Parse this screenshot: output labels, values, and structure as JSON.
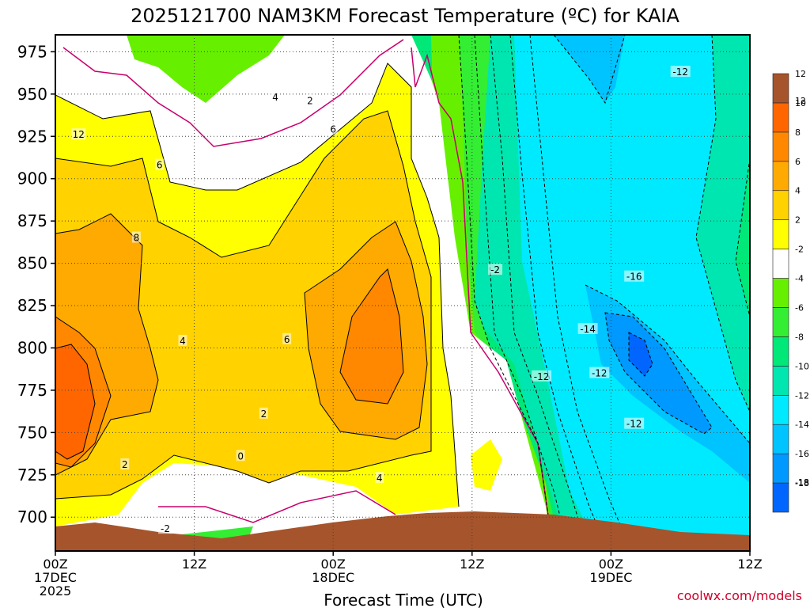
{
  "chart_data": {
    "type": "heatmap",
    "title": "2025121700 NAM3KM Forecast Temperature (ºC) for KAIA",
    "xlabel": "Forecast Time (UTC)",
    "credit": "coolwx.com/models",
    "x_range_hours": [
      0,
      60
    ],
    "y_range_hpa": [
      985,
      680
    ],
    "y_ticks": [
      {
        "value": 700,
        "label": "700"
      },
      {
        "value": 725,
        "label": "725"
      },
      {
        "value": 750,
        "label": "750"
      },
      {
        "value": 775,
        "label": "775"
      },
      {
        "value": 800,
        "label": "800"
      },
      {
        "value": 825,
        "label": "825"
      },
      {
        "value": 850,
        "label": "850"
      },
      {
        "value": 875,
        "label": "875"
      },
      {
        "value": 900,
        "label": "900"
      },
      {
        "value": 925,
        "label": "925"
      },
      {
        "value": 950,
        "label": "950"
      },
      {
        "value": 975,
        "label": "975"
      }
    ],
    "x_ticks": [
      {
        "hour": 0,
        "lines": [
          "00Z",
          "17DEC",
          "2025"
        ]
      },
      {
        "hour": 12,
        "lines": [
          "12Z"
        ]
      },
      {
        "hour": 24,
        "lines": [
          "00Z",
          "18DEC"
        ]
      },
      {
        "hour": 36,
        "lines": [
          "12Z"
        ]
      },
      {
        "hour": 48,
        "lines": [
          "00Z",
          "19DEC"
        ]
      },
      {
        "hour": 60,
        "lines": [
          "12Z"
        ]
      }
    ],
    "grid": true,
    "legend_position": "right",
    "colorbar": [
      {
        "color": "#0066ff",
        "label": "-18"
      },
      {
        "color": "#0099ff",
        "label": "-16"
      },
      {
        "color": "#00c4ff",
        "label": "-14"
      },
      {
        "color": "#00eaff",
        "label": "-12"
      },
      {
        "color": "#00e6b0",
        "label": "-10"
      },
      {
        "color": "#00e878",
        "label": "-8"
      },
      {
        "color": "#33ee33",
        "label": "-6"
      },
      {
        "color": "#66f000",
        "label": "-4"
      },
      {
        "color": "#ffffff",
        "label": "-2"
      },
      {
        "color": "#ffff00",
        "label": "2"
      },
      {
        "color": "#ffd200",
        "label": "4"
      },
      {
        "color": "#ffaa00",
        "label": "6"
      },
      {
        "color": "#ff8800",
        "label": "8"
      },
      {
        "color": "#ff6600",
        "label": "10"
      },
      {
        "color": "#a6542b",
        "label": "12"
      }
    ],
    "colorbar_extra_labels": [
      "12",
      "-18"
    ],
    "contour_labels": [
      {
        "hour": 9.5,
        "hpa": 693,
        "label": "-2"
      },
      {
        "hour": 6,
        "hpa": 731,
        "label": "2"
      },
      {
        "hour": 16,
        "hpa": 736,
        "label": "0"
      },
      {
        "hour": 28,
        "hpa": 723,
        "label": "4"
      },
      {
        "hour": 18,
        "hpa": 761,
        "label": "2"
      },
      {
        "hour": 11,
        "hpa": 804,
        "label": "4"
      },
      {
        "hour": 20,
        "hpa": 805,
        "label": "6"
      },
      {
        "hour": 7,
        "hpa": 865,
        "label": "8"
      },
      {
        "hour": 9,
        "hpa": 908,
        "label": "6"
      },
      {
        "hour": 2,
        "hpa": 926,
        "label": "12"
      },
      {
        "hour": 24,
        "hpa": 929,
        "label": "6"
      },
      {
        "hour": 22,
        "hpa": 946,
        "label": "2"
      },
      {
        "hour": 19,
        "hpa": 948,
        "label": "4"
      },
      {
        "hour": 38,
        "hpa": 846,
        "label": "-2"
      },
      {
        "hour": 50,
        "hpa": 755,
        "label": "-12"
      },
      {
        "hour": 42,
        "hpa": 783,
        "label": "-12"
      },
      {
        "hour": 47,
        "hpa": 785,
        "label": "-12"
      },
      {
        "hour": 46,
        "hpa": 811,
        "label": "-14"
      },
      {
        "hour": 50,
        "hpa": 842,
        "label": "-16"
      },
      {
        "hour": 54,
        "hpa": 963,
        "label": "-12"
      }
    ]
  }
}
